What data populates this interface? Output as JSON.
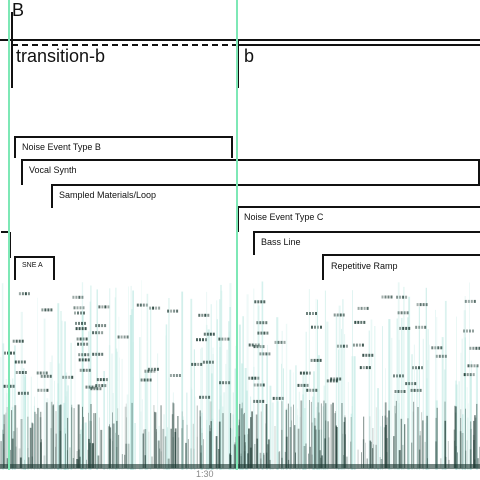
{
  "section": {
    "letter": "B",
    "part_a": "transition-b",
    "part_b": "b"
  },
  "events": [
    {
      "id": "noise-b",
      "label": "Noise Event Type B"
    },
    {
      "id": "vocal",
      "label": "Vocal Synth"
    },
    {
      "id": "sampled",
      "label": "Sampled Materials/Loop"
    },
    {
      "id": "noise-c",
      "label": "Noise Event Type C"
    },
    {
      "id": "bass",
      "label": "Bass Line"
    },
    {
      "id": "ramp",
      "label": "Repetitive Ramp"
    },
    {
      "id": "sne-a",
      "label": "SNE A"
    }
  ],
  "timeline": {
    "time_label": "1:30"
  },
  "colors": {
    "marker": "#7ee8b6",
    "line": "#111111",
    "spectrum_dark": "#1e3b34",
    "spectrum_light": "#bfe9e3"
  }
}
